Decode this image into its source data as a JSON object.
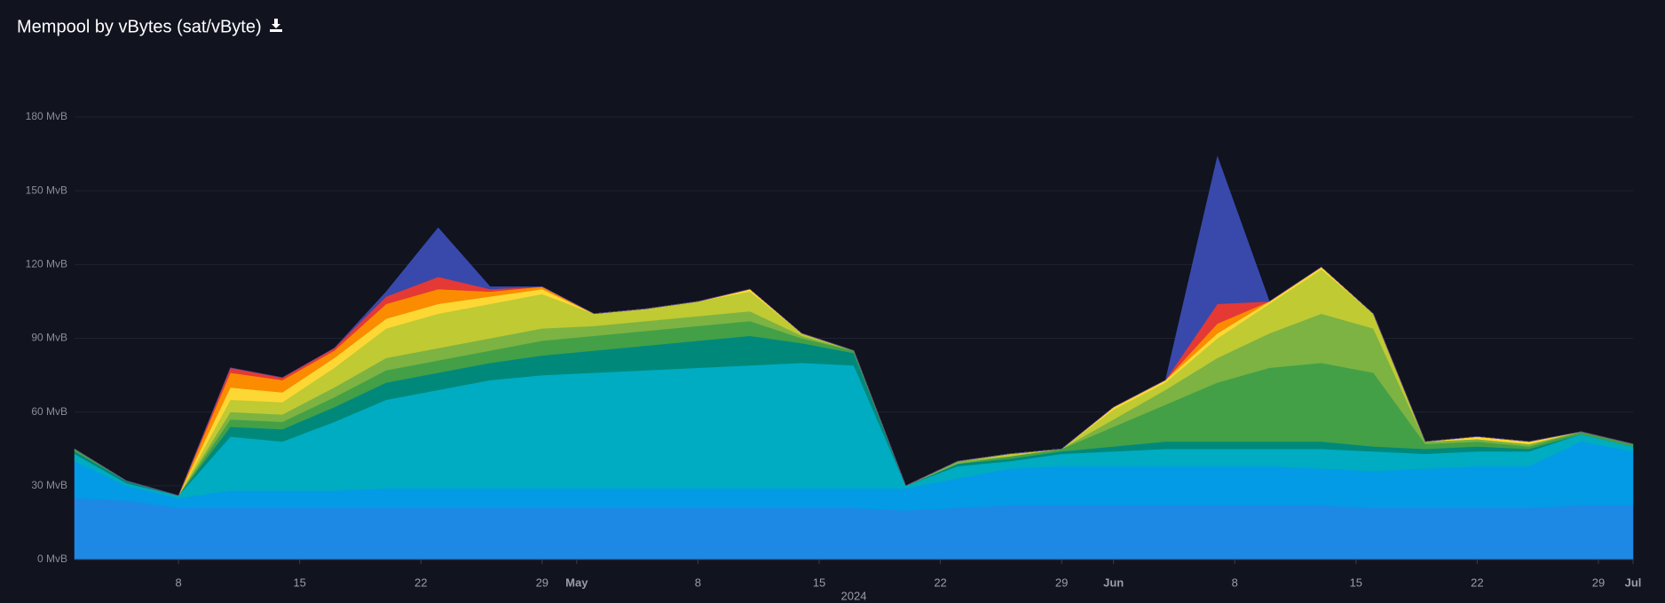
{
  "chart_data": {
    "type": "stacked-area",
    "title": "Mempool by vBytes (sat/vByte)",
    "xlabel": "2024",
    "x": [
      "2024-04-02",
      "2024-04-05",
      "2024-04-08",
      "2024-04-11",
      "2024-04-14",
      "2024-04-17",
      "2024-04-20",
      "2024-04-23",
      "2024-04-26",
      "2024-04-29",
      "2024-05-02",
      "2024-05-05",
      "2024-05-08",
      "2024-05-11",
      "2024-05-14",
      "2024-05-17",
      "2024-05-20",
      "2024-05-23",
      "2024-05-26",
      "2024-05-29",
      "2024-06-01",
      "2024-06-04",
      "2024-06-07",
      "2024-06-10",
      "2024-06-13",
      "2024-06-16",
      "2024-06-19",
      "2024-06-22",
      "2024-06-25",
      "2024-06-28",
      "2024-07-01"
    ],
    "xlim": [
      "2024-04-02",
      "2024-07-01"
    ],
    "xticks": [
      {
        "value": "2024-04-08",
        "label": "8"
      },
      {
        "value": "2024-04-15",
        "label": "15"
      },
      {
        "value": "2024-04-22",
        "label": "22"
      },
      {
        "value": "2024-04-29",
        "label": "29"
      },
      {
        "value": "2024-05-01",
        "label": "May"
      },
      {
        "value": "2024-05-08",
        "label": "8"
      },
      {
        "value": "2024-05-15",
        "label": "15"
      },
      {
        "value": "2024-05-22",
        "label": "22"
      },
      {
        "value": "2024-05-29",
        "label": "29"
      },
      {
        "value": "2024-06-01",
        "label": "Jun"
      },
      {
        "value": "2024-06-08",
        "label": "8"
      },
      {
        "value": "2024-06-15",
        "label": "15"
      },
      {
        "value": "2024-06-22",
        "label": "22"
      },
      {
        "value": "2024-06-29",
        "label": "29"
      },
      {
        "value": "2024-07-01",
        "label": "Jul"
      }
    ],
    "ylim": [
      0,
      180
    ],
    "yticks": [
      {
        "value": 0,
        "label": "0 MvB"
      },
      {
        "value": 30,
        "label": "30 MvB"
      },
      {
        "value": 60,
        "label": "60 MvB"
      },
      {
        "value": 90,
        "label": "90 MvB"
      },
      {
        "value": 120,
        "label": "120 MvB"
      },
      {
        "value": 150,
        "label": "150 MvB"
      },
      {
        "value": 180,
        "label": "180 MvB"
      }
    ],
    "grid": true,
    "series": [
      {
        "color": "#1e88e5",
        "values": [
          25,
          24,
          21,
          21,
          21,
          21,
          21,
          21,
          21,
          21,
          21,
          21,
          21,
          21,
          21,
          21,
          20,
          21,
          22,
          22,
          22,
          22,
          22,
          22,
          22,
          21,
          21,
          21,
          21,
          22,
          22
        ]
      },
      {
        "color": "#039be5",
        "values": [
          15,
          6,
          4,
          7,
          7,
          7,
          8,
          8,
          8,
          8,
          8,
          8,
          8,
          8,
          8,
          8,
          9,
          12,
          15,
          16,
          16,
          16,
          16,
          16,
          15,
          15,
          16,
          17,
          17,
          26,
          22
        ]
      },
      {
        "color": "#00acc1",
        "values": [
          3,
          1,
          1,
          22,
          20,
          28,
          36,
          40,
          44,
          46,
          47,
          48,
          49,
          50,
          51,
          50,
          1,
          5,
          3,
          5,
          6,
          7,
          7,
          7,
          8,
          8,
          6,
          6,
          6,
          3,
          2
        ]
      },
      {
        "color": "#00897b",
        "values": [
          1,
          1,
          0,
          4,
          5,
          6,
          7,
          7,
          7,
          8,
          9,
          10,
          11,
          12,
          8,
          5,
          0,
          1,
          1,
          1,
          2,
          3,
          3,
          3,
          3,
          2,
          2,
          2,
          1,
          0,
          0
        ]
      },
      {
        "color": "#43a047",
        "values": [
          1,
          0,
          0,
          3,
          3,
          4,
          5,
          5,
          5,
          6,
          6,
          6,
          6,
          6,
          2,
          1,
          0,
          0,
          1,
          1,
          8,
          15,
          24,
          30,
          32,
          30,
          2,
          2,
          1,
          1,
          1
        ]
      },
      {
        "color": "#7cb342",
        "values": [
          0,
          0,
          0,
          3,
          3,
          4,
          5,
          5,
          5,
          5,
          4,
          4,
          4,
          4,
          1,
          0,
          0,
          1,
          0,
          0,
          3,
          6,
          10,
          14,
          20,
          18,
          1,
          1,
          1,
          0,
          0
        ]
      },
      {
        "color": "#c0ca33",
        "values": [
          0,
          0,
          0,
          5,
          5,
          8,
          12,
          14,
          14,
          14,
          5,
          5,
          6,
          8,
          1,
          0,
          0,
          0,
          1,
          0,
          4,
          3,
          8,
          12,
          18,
          6,
          0,
          0,
          0,
          0,
          0
        ]
      },
      {
        "color": "#fdd835",
        "values": [
          0,
          0,
          0,
          5,
          4,
          4,
          4,
          4,
          3,
          2,
          0,
          0,
          0,
          1,
          0,
          0,
          0,
          0,
          0,
          0,
          1,
          1,
          2,
          1,
          1,
          0,
          0,
          1,
          1,
          0,
          0
        ]
      },
      {
        "color": "#fb8c00",
        "values": [
          0,
          0,
          0,
          6,
          5,
          3,
          6,
          6,
          2,
          1,
          0,
          0,
          0,
          0,
          0,
          0,
          0,
          0,
          0,
          0,
          0,
          0,
          4,
          0,
          0,
          0,
          0,
          0,
          0,
          0,
          0
        ]
      },
      {
        "color": "#e53935",
        "values": [
          0,
          0,
          0,
          2,
          1,
          1,
          3,
          5,
          1,
          0,
          0,
          0,
          0,
          0,
          0,
          0,
          0,
          0,
          0,
          0,
          0,
          0,
          8,
          0,
          0,
          0,
          0,
          0,
          0,
          0,
          0
        ]
      },
      {
        "color": "#3949ab",
        "values": [
          0,
          0,
          0,
          0,
          0,
          0,
          2,
          20,
          1,
          0,
          0,
          0,
          0,
          0,
          0,
          0,
          0,
          0,
          0,
          0,
          0,
          0,
          60,
          0,
          0,
          0,
          0,
          0,
          0,
          0,
          0
        ]
      }
    ]
  }
}
